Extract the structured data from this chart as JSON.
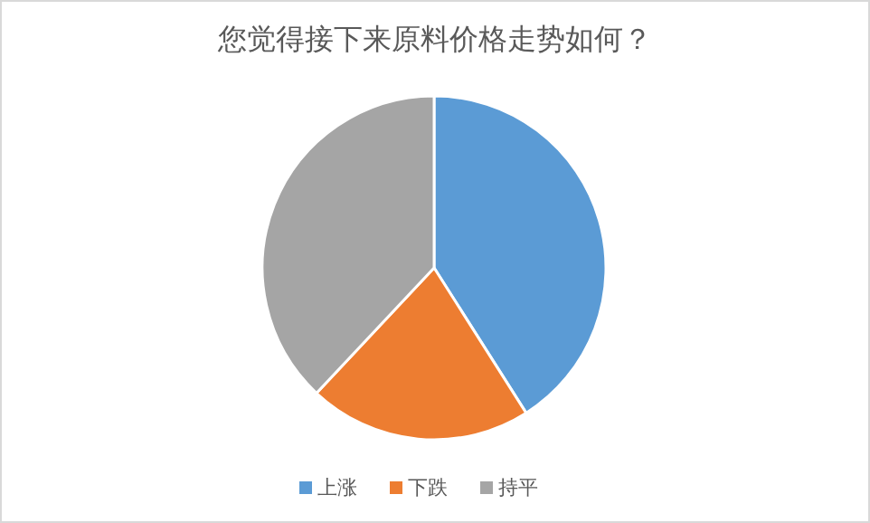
{
  "chart_data": {
    "type": "pie",
    "title": "您觉得接下来原料价格走势如何？",
    "categories": [
      "上涨",
      "下跌",
      "持平"
    ],
    "values": [
      41,
      21,
      38
    ],
    "colors": [
      "#5b9bd5",
      "#ed7d31",
      "#a5a5a5"
    ],
    "legend": "bottom"
  }
}
